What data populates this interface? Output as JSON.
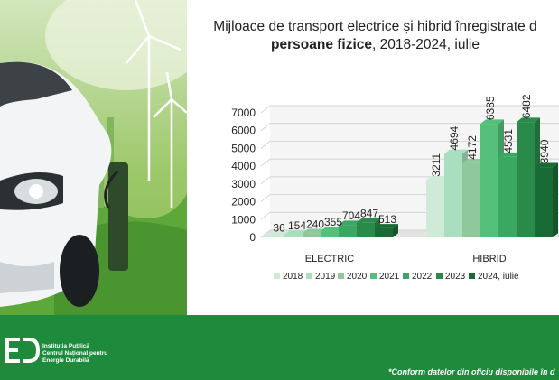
{
  "title": {
    "line1": "Mijloace de transport electrice și hibrid înregistrate d",
    "bold": "persoane fizice",
    "rest": ", 2018-2024, iulie"
  },
  "footer": {
    "org_line1": "Instituția Publică",
    "org_line2": "Centrul Național pentru",
    "org_line3": "Energie Durabilă",
    "footnote": "*Conform datelor din oficiu disponibile în d"
  },
  "colors": {
    "footer_green": "#1d8a3c",
    "series": [
      "#cdebd7",
      "#a9dfbf",
      "#8fc89a",
      "#55c07a",
      "#3aa861",
      "#2a8a4a",
      "#1a6a35"
    ]
  },
  "chart_data": {
    "type": "bar",
    "style": "3d-clustered",
    "categories": [
      "ELECTRIC",
      "HIBRID"
    ],
    "series": [
      {
        "name": "2018",
        "values": [
          36,
          3211
        ]
      },
      {
        "name": "2019",
        "values": [
          154,
          4694
        ]
      },
      {
        "name": "2020",
        "values": [
          240,
          4172
        ]
      },
      {
        "name": "2021",
        "values": [
          355,
          6385
        ]
      },
      {
        "name": "2022",
        "values": [
          704,
          4531
        ]
      },
      {
        "name": "2023",
        "values": [
          847,
          6482
        ]
      },
      {
        "name": "2024, iulie",
        "values": [
          513,
          3940
        ]
      }
    ],
    "ylim": [
      0,
      7000
    ],
    "yticks": [
      0,
      1000,
      2000,
      3000,
      4000,
      5000,
      6000,
      7000
    ],
    "grid": true,
    "legend": "bottom"
  }
}
